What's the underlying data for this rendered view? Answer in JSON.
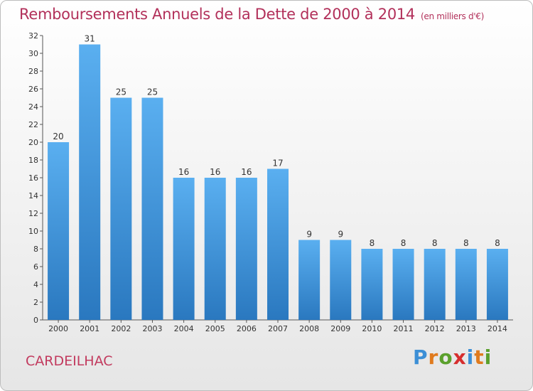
{
  "header": {
    "title": "Remboursements Annuels de la Dette de 2000 à 2014",
    "unit": "(en milliers d'€)"
  },
  "footer": {
    "commune": "CARDEILHAC",
    "brand": [
      "P",
      "r",
      "o",
      "x",
      "i",
      "t",
      "i"
    ],
    "brand_colors": [
      "#3c8fd6",
      "#e07b1e",
      "#5aa02c",
      "#d62e2e",
      "#3c8fd6",
      "#e07b1e",
      "#5aa02c"
    ]
  },
  "chart_data": {
    "type": "bar",
    "categories": [
      "2000",
      "2001",
      "2002",
      "2003",
      "2004",
      "2005",
      "2006",
      "2007",
      "2008",
      "2009",
      "2010",
      "2011",
      "2012",
      "2013",
      "2014"
    ],
    "values": [
      20,
      31,
      25,
      25,
      16,
      16,
      16,
      17,
      9,
      9,
      8,
      8,
      8,
      8,
      8
    ],
    "ylim": [
      0,
      32
    ],
    "yticks": [
      0,
      2,
      4,
      6,
      8,
      10,
      12,
      14,
      16,
      18,
      20,
      22,
      24,
      26,
      28,
      30,
      32
    ],
    "grid": false,
    "bar_color_top": "#5aaff0",
    "bar_color_bottom": "#2a78bf"
  }
}
